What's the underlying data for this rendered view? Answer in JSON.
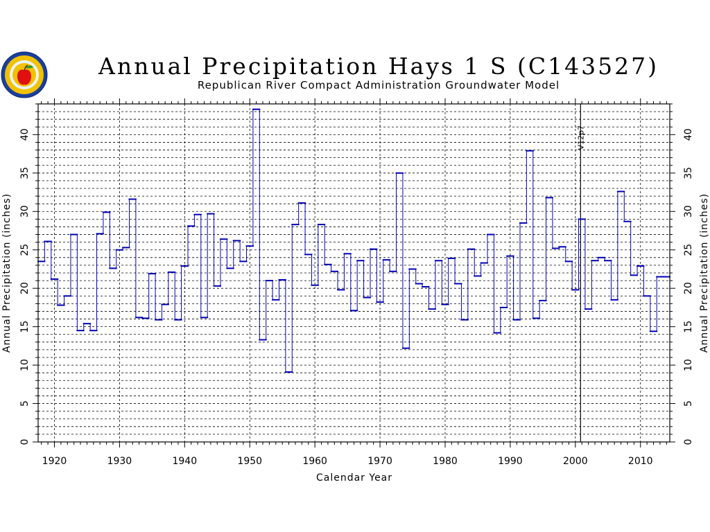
{
  "logo": {
    "icon": "apple-logo-icon",
    "colors": {
      "ring": "#1a3f9c",
      "fill": "#f2c200",
      "apple": "#e01010",
      "leaf": "#2a9a2a"
    }
  },
  "chart_data": {
    "type": "step-line",
    "title": "Annual Precipitation Hays 1 S (C143527)",
    "subtitle": "Republican River Compact Administration Groundwater Model",
    "xlabel": "Calendar Year",
    "ylabel": "Annual Precipitation (inches)",
    "xlim": [
      1917.5,
      2014.5
    ],
    "ylim": [
      0,
      44
    ],
    "xticks": [
      1920,
      1930,
      1940,
      1950,
      1960,
      1970,
      1980,
      1990,
      2000,
      2010
    ],
    "yticks": [
      0,
      5,
      10,
      15,
      20,
      25,
      30,
      35,
      40
    ],
    "grid": true,
    "line_color": "#0000b4",
    "marker": {
      "year": 2000.8,
      "label": "V12p7"
    },
    "series": [
      {
        "x": [
          1918,
          1919,
          1920,
          1921,
          1922,
          1923,
          1924,
          1925,
          1926,
          1927,
          1928,
          1929,
          1930,
          1931,
          1932,
          1933,
          1934,
          1935,
          1936,
          1937,
          1938,
          1939,
          1940,
          1941,
          1942,
          1943,
          1944,
          1945,
          1946,
          1947,
          1948,
          1949,
          1950,
          1951,
          1952,
          1953,
          1954,
          1955,
          1956,
          1957,
          1958,
          1959,
          1960,
          1961,
          1962,
          1963,
          1964,
          1965,
          1966,
          1967,
          1968,
          1969,
          1970,
          1971,
          1972,
          1973,
          1974,
          1975,
          1976,
          1977,
          1978,
          1979,
          1980,
          1981,
          1982,
          1983,
          1984,
          1985,
          1986,
          1987,
          1988,
          1989,
          1990,
          1991,
          1992,
          1993,
          1994,
          1995,
          1996,
          1997,
          1998,
          1999,
          2000,
          2001,
          2002,
          2003,
          2004,
          2005,
          2006,
          2007,
          2008,
          2009,
          2010,
          2011,
          2012,
          2013,
          2014
        ],
        "y": [
          23.5,
          26.1,
          21.2,
          17.8,
          19.0,
          27.0,
          14.5,
          15.4,
          14.5,
          27.1,
          29.9,
          22.6,
          25.0,
          25.3,
          31.6,
          16.2,
          16.1,
          21.9,
          15.9,
          17.9,
          22.1,
          15.9,
          22.9,
          28.1,
          29.6,
          16.2,
          29.7,
          20.3,
          26.4,
          22.6,
          26.2,
          23.5,
          25.5,
          43.3,
          13.3,
          21.0,
          18.5,
          21.1,
          9.1,
          28.3,
          31.1,
          24.4,
          20.4,
          28.3,
          23.1,
          22.2,
          19.8,
          24.5,
          17.1,
          23.6,
          18.8,
          25.1,
          18.2,
          23.7,
          22.2,
          35.0,
          12.2,
          22.5,
          20.6,
          20.2,
          17.3,
          23.6,
          17.9,
          23.9,
          20.6,
          15.9,
          25.1,
          21.6,
          23.3,
          27.0,
          14.2,
          17.5,
          24.2,
          15.9,
          28.5,
          37.9,
          16.1,
          18.4,
          31.8,
          25.2,
          25.4,
          23.5,
          19.8,
          29.0,
          17.3,
          23.6,
          24.0,
          23.6,
          18.5,
          32.6,
          28.7,
          21.7,
          22.9,
          19.0,
          14.4,
          21.5,
          21.5
        ]
      }
    ]
  }
}
